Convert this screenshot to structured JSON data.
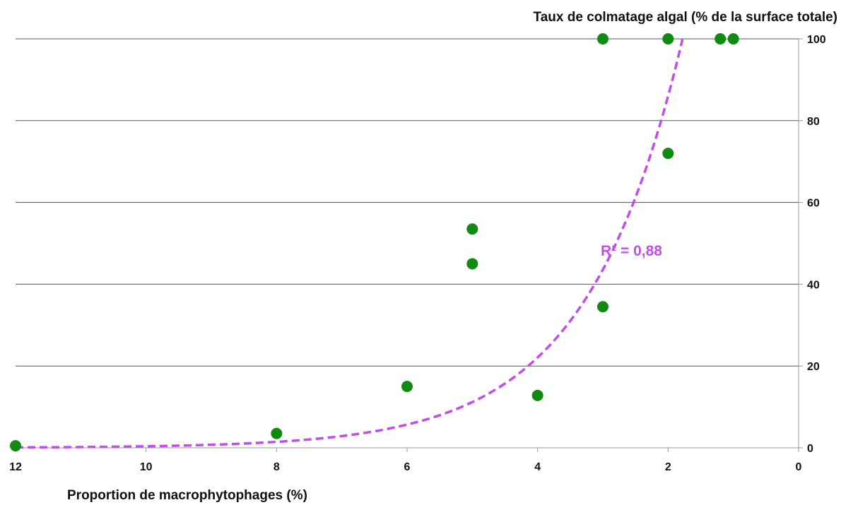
{
  "chart_data": {
    "type": "scatter",
    "title": "",
    "xlabel": "Proportion de macrophytophages (%)",
    "ylabel": "Taux de colmatage algal (% de la surface totale)",
    "x_reversed": true,
    "xlim": [
      12,
      0
    ],
    "ylim": [
      0,
      100
    ],
    "x_ticks": [
      "12",
      "10",
      "8",
      "6",
      "4",
      "2",
      "0"
    ],
    "y_ticks": [
      "0",
      "20",
      "40",
      "60",
      "80",
      "100"
    ],
    "grid": "horizontal",
    "y_axis_position": "right",
    "points": [
      {
        "x": 12,
        "y": 0.5
      },
      {
        "x": 8,
        "y": 3.5
      },
      {
        "x": 6,
        "y": 15
      },
      {
        "x": 5,
        "y": 53.5
      },
      {
        "x": 5,
        "y": 45
      },
      {
        "x": 4,
        "y": 12.8
      },
      {
        "x": 3,
        "y": 100
      },
      {
        "x": 3,
        "y": 34.5
      },
      {
        "x": 2,
        "y": 100
      },
      {
        "x": 2,
        "y": 72
      },
      {
        "x": 1.2,
        "y": 100
      },
      {
        "x": 1,
        "y": 100
      }
    ],
    "point_color": "#118A11",
    "trendline": {
      "type": "exponential",
      "r2_label": "R² = 0,88",
      "color": "#C34DEB",
      "style": "dashed",
      "equation": {
        "a": 335,
        "b": -0.68
      },
      "x_range": [
        12,
        1.78
      ]
    }
  }
}
